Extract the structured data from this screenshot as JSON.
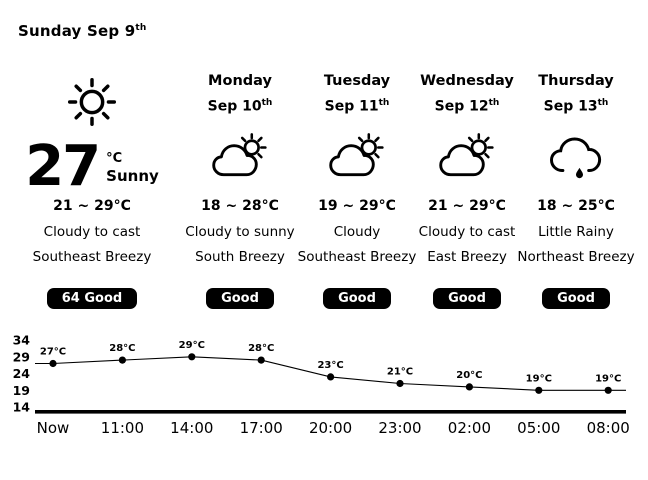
{
  "colors": {
    "background": "#ffffff",
    "text": "#000000",
    "badge_bg": "#000000",
    "badge_text": "#ffffff",
    "line": "#000000"
  },
  "header": {
    "title": "Sunday Sep 9",
    "title_suffix": "th"
  },
  "today": {
    "icon": "sun",
    "temp_now": "27",
    "temp_unit": "°C",
    "condition_now": "Sunny",
    "range": "21 ~ 29°C",
    "condition": "Cloudy to cast",
    "wind": "Southeast Breezy",
    "badge": "64  Good"
  },
  "forecast": [
    {
      "day": "Monday",
      "date": "Sep 10",
      "date_suffix": "th",
      "icon": "cloud-sun",
      "range": "18 ~ 28°C",
      "condition": "Cloudy to sunny",
      "wind": "South Breezy",
      "badge": "Good"
    },
    {
      "day": "Tuesday",
      "date": "Sep 11",
      "date_suffix": "th",
      "icon": "cloud-sun",
      "range": "19 ~ 29°C",
      "condition": "Cloudy",
      "wind": "Southeast Breezy",
      "badge": "Good"
    },
    {
      "day": "Wednesday",
      "date": "Sep 12",
      "date_suffix": "th",
      "icon": "cloud-sun",
      "range": "21 ~ 29°C",
      "condition": "Cloudy to cast",
      "wind": "East Breezy",
      "badge": "Good"
    },
    {
      "day": "Thursday",
      "date": "Sep 13",
      "date_suffix": "th",
      "icon": "cloud-rain",
      "range": "18 ~ 25°C",
      "condition": "Little Rainy",
      "wind": "Northeast Breezy",
      "badge": "Good"
    }
  ],
  "chart_data": {
    "type": "line",
    "categories": [
      "Now",
      "11:00",
      "14:00",
      "17:00",
      "20:00",
      "23:00",
      "02:00",
      "05:00",
      "08:00"
    ],
    "values": [
      27,
      28,
      29,
      28,
      23,
      21,
      20,
      19,
      19
    ],
    "point_labels": [
      "27°C",
      "28°C",
      "29°C",
      "28°C",
      "23°C",
      "21°C",
      "20°C",
      "19°C",
      "19°C"
    ],
    "y_ticks": [
      34,
      29,
      24,
      19,
      14
    ],
    "ylim": [
      14,
      34
    ],
    "title": "",
    "xlabel": "",
    "ylabel": "",
    "grid": false,
    "legend": false,
    "line_color": "#000000"
  }
}
